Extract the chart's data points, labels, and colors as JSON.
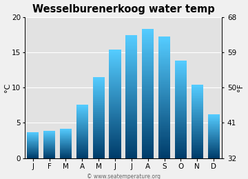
{
  "title": "Wesselburenerkoog water temp",
  "months": [
    "J",
    "F",
    "M",
    "A",
    "M",
    "J",
    "J",
    "A",
    "S",
    "O",
    "N",
    "D"
  ],
  "values_c": [
    3.7,
    3.9,
    4.2,
    7.6,
    11.5,
    15.4,
    17.4,
    18.3,
    17.2,
    13.8,
    10.4,
    6.2
  ],
  "ylabel_left": "°C",
  "ylabel_right": "°F",
  "ylim_c": [
    0,
    20
  ],
  "yticks_c": [
    0,
    5,
    10,
    15,
    20
  ],
  "yticks_f": [
    32,
    41,
    50,
    59,
    68
  ],
  "bar_color_top": "#55ccff",
  "bar_color_bottom": "#003d6b",
  "bg_color": "#f0f0f0",
  "plot_bg_color": "#e2e2e2",
  "title_fontsize": 10.5,
  "axis_fontsize": 8,
  "tick_fontsize": 7.5,
  "watermark": "© www.seatemperature.org",
  "watermark_fontsize": 5.5
}
